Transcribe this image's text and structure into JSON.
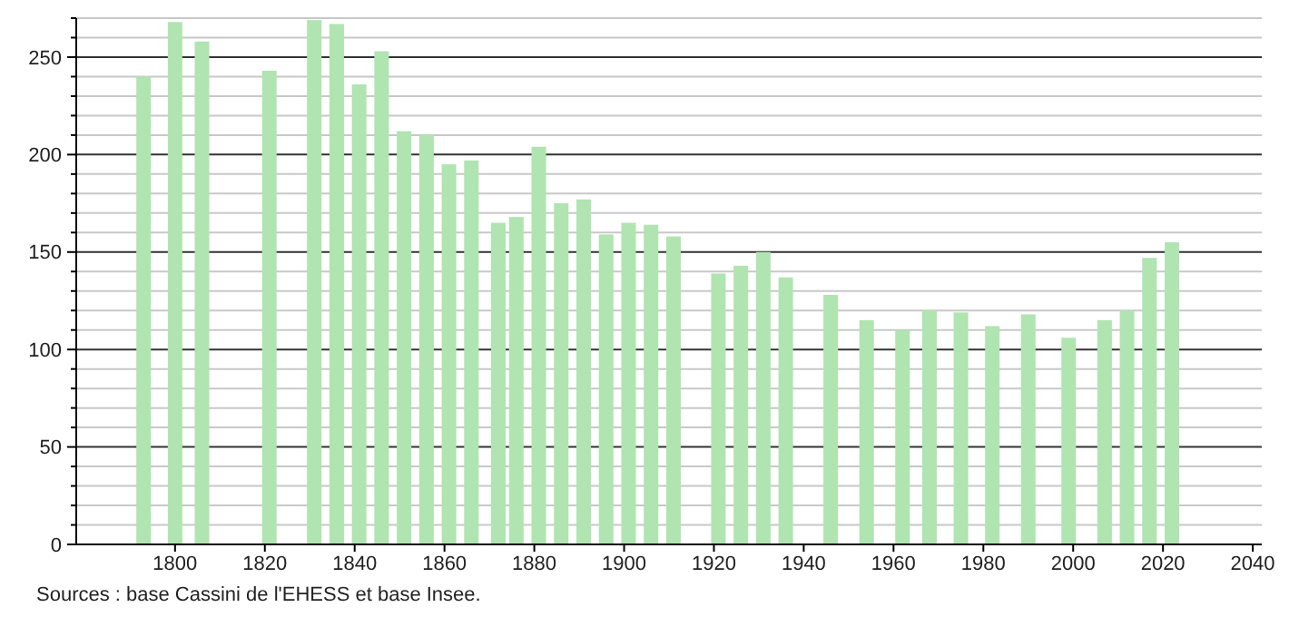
{
  "chart_data": {
    "type": "bar",
    "x": [
      1793,
      1800,
      1806,
      1821,
      1831,
      1836,
      1841,
      1846,
      1851,
      1856,
      1861,
      1866,
      1872,
      1876,
      1881,
      1886,
      1891,
      1896,
      1901,
      1906,
      1911,
      1921,
      1926,
      1931,
      1936,
      1946,
      1954,
      1962,
      1968,
      1975,
      1982,
      1990,
      1999,
      2007,
      2012,
      2017,
      2022
    ],
    "values": [
      240,
      268,
      258,
      243,
      269,
      267,
      236,
      253,
      212,
      210,
      195,
      197,
      165,
      168,
      204,
      175,
      177,
      159,
      165,
      164,
      158,
      139,
      143,
      150,
      137,
      128,
      115,
      110,
      120,
      119,
      112,
      118,
      106,
      115,
      120,
      147,
      155
    ],
    "color": "#b0e4b0",
    "xlim": [
      1778,
      2042
    ],
    "xticks": [
      1800,
      1820,
      1840,
      1860,
      1880,
      1900,
      1920,
      1940,
      1960,
      1980,
      2000,
      2020,
      2040
    ],
    "ylim": [
      0,
      270
    ],
    "yticks": [
      0,
      {
        "value": 10,
        "label": null
      },
      {
        "value": 20,
        "label": null
      },
      {
        "value": 30,
        "label": null
      },
      {
        "value": 40,
        "label": null
      },
      50,
      {
        "value": 60,
        "label": null
      },
      {
        "value": 70,
        "label": null
      },
      {
        "value": 80,
        "label": null
      },
      {
        "value": 90,
        "label": null
      },
      100,
      {
        "value": 110,
        "label": null
      },
      {
        "value": 120,
        "label": null
      },
      {
        "value": 130,
        "label": null
      },
      {
        "value": 140,
        "label": null
      },
      150,
      {
        "value": 160,
        "label": null
      },
      {
        "value": 170,
        "label": null
      },
      {
        "value": 180,
        "label": null
      },
      {
        "value": 190,
        "label": null
      },
      200,
      {
        "value": 210,
        "label": null
      },
      {
        "value": 220,
        "label": null
      },
      {
        "value": 230,
        "label": null
      },
      {
        "value": 240,
        "label": null
      },
      250,
      {
        "value": 260,
        "label": null
      },
      {
        "value": 270,
        "label": null
      }
    ],
    "grid": "y",
    "annotations": [
      "Sources : base Cassini de l'EHESS et base Insee."
    ]
  }
}
